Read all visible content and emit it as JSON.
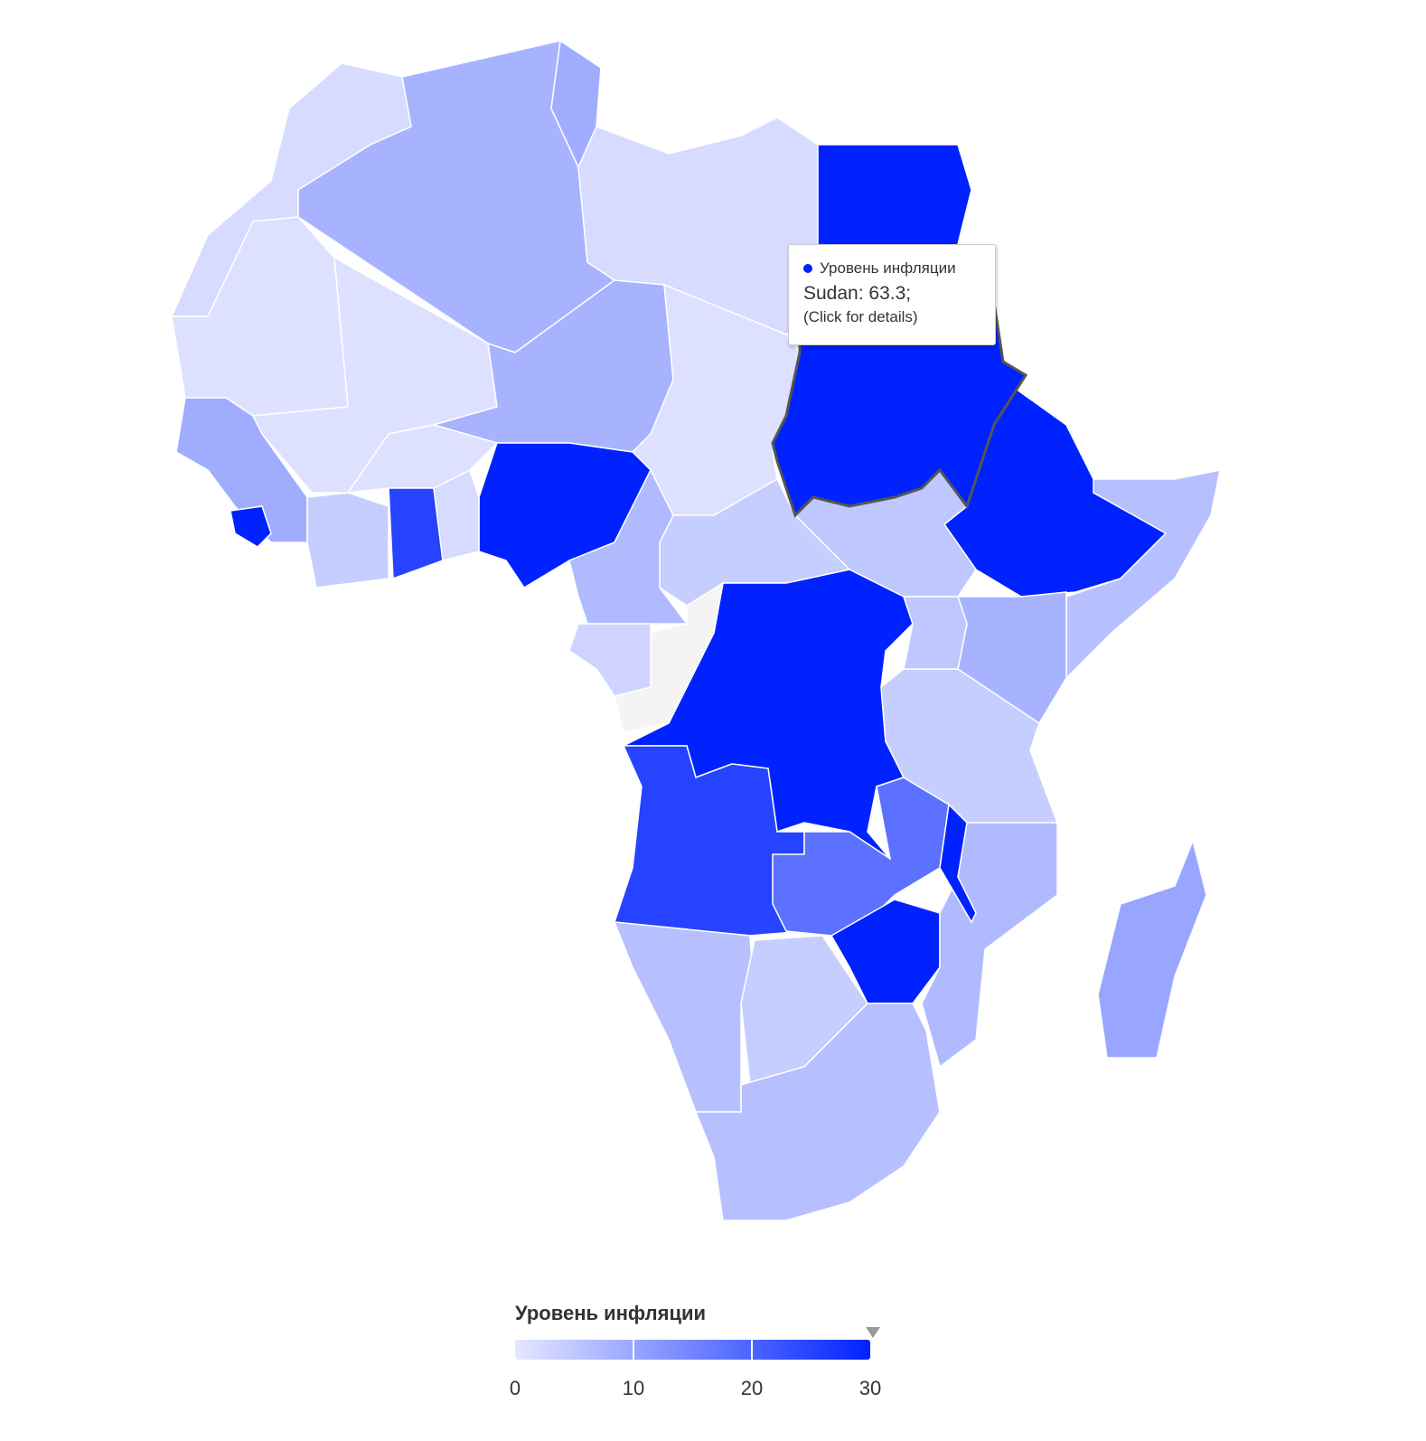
{
  "map": {
    "regions": [
      2,
      8,
      9,
      2,
      35,
      1,
      1,
      8,
      1,
      63.3,
      35,
      6,
      5,
      4,
      35,
      7,
      40,
      null,
      3,
      25,
      18,
      45,
      4,
      8,
      5,
      7,
      30,
      6,
      4,
      6,
      10,
      9,
      40,
      4,
      1,
      25,
      2
    ],
    "tooltip": {
      "series": "Уровень инфляции",
      "label": "Sudan: 63.3;",
      "note": "(Click for details)"
    },
    "legend": {
      "title": "Уровень инфляции",
      "range": [
        0,
        30
      ],
      "ticks": [
        0,
        10,
        20,
        30
      ]
    }
  }
}
